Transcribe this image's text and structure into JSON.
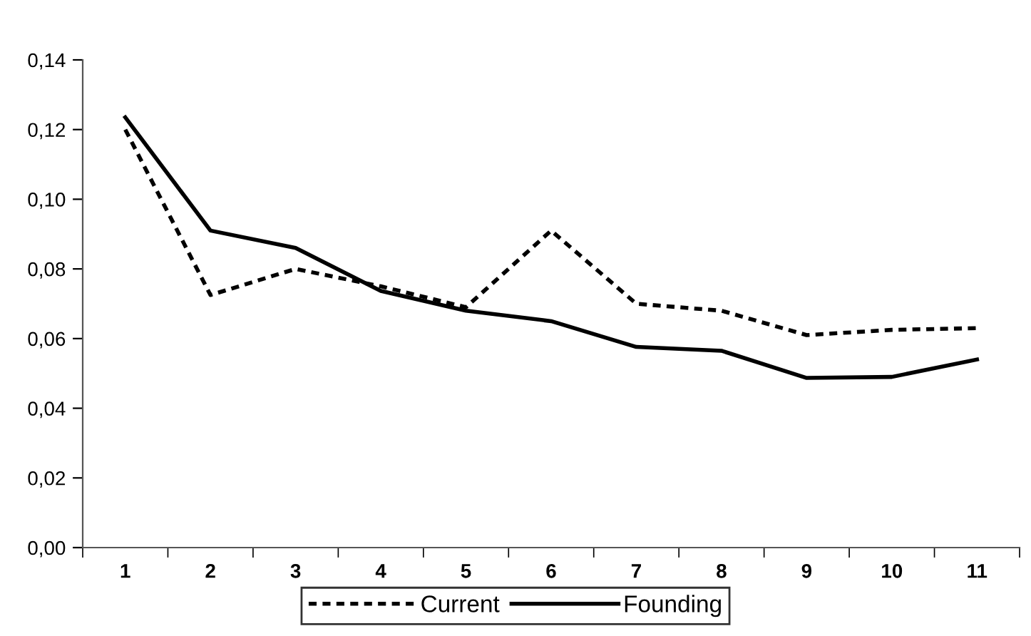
{
  "chart_data": {
    "type": "line",
    "categories": [
      "1",
      "2",
      "3",
      "4",
      "5",
      "6",
      "7",
      "8",
      "9",
      "10",
      "11"
    ],
    "series": [
      {
        "name": "Current",
        "color": "#000000",
        "line_style": "dashed",
        "values": [
          0.12,
          0.0725,
          0.08,
          0.075,
          0.069,
          0.091,
          0.07,
          0.068,
          0.061,
          0.0625,
          0.063
        ]
      },
      {
        "name": "Founding",
        "color": "#000000",
        "line_style": "solid",
        "values": [
          0.1235,
          0.091,
          0.086,
          0.0737,
          0.068,
          0.065,
          0.0576,
          0.0565,
          0.0487,
          0.049,
          0.054
        ]
      }
    ],
    "ylim": [
      0,
      0.14
    ],
    "yticks": [
      {
        "value": 0,
        "label": "0,00"
      },
      {
        "value": 0.02,
        "label": "0,02"
      },
      {
        "value": 0.04,
        "label": "0,04"
      },
      {
        "value": 0.06,
        "label": "0,06"
      },
      {
        "value": 0.08,
        "label": "0,08"
      },
      {
        "value": 0.1,
        "label": "0,10"
      },
      {
        "value": 0.12,
        "label": "0,12"
      },
      {
        "value": 0.14,
        "label": "0,14"
      }
    ],
    "grid": false,
    "legend": "bottom",
    "marker": "none"
  }
}
